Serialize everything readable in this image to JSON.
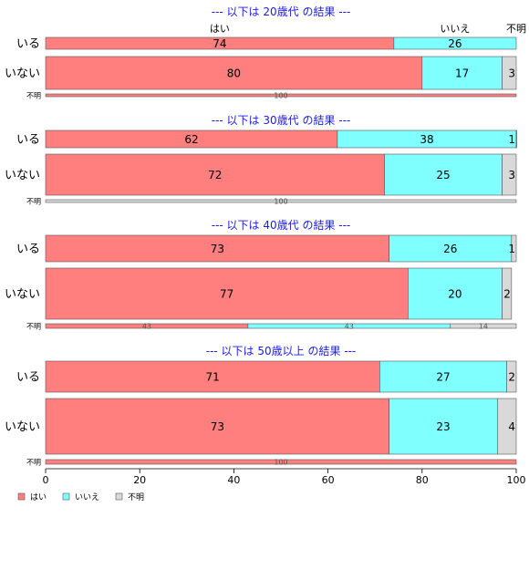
{
  "chart_data": {
    "type": "bar",
    "orientation": "horizontal",
    "stacked": true,
    "xlim": [
      0,
      100
    ],
    "x_ticks": [
      "0",
      "20",
      "40",
      "60",
      "80",
      "100"
    ],
    "grid": false,
    "legend_position": "bottom-left",
    "category_labels": [
      "はい",
      "いいえ",
      "不明"
    ],
    "colors": [
      "#ff7f7f",
      "#80ffff",
      "#d9d9d9"
    ],
    "legend": [
      {
        "name": "はい",
        "color": "#ff7f7f"
      },
      {
        "name": "いいえ",
        "color": "#80ffff"
      },
      {
        "name": "不明",
        "color": "#d9d9d9"
      }
    ],
    "panels": [
      {
        "title": "--- 以下は 20歳代 の結果 ---",
        "rows": [
          {
            "label": "いる",
            "values": [
              74,
              26,
              0
            ],
            "labels": [
              "74",
              "26",
              ""
            ]
          },
          {
            "label": "いない",
            "values": [
              80,
              17,
              3
            ],
            "labels": [
              "80",
              "17",
              "3"
            ]
          },
          {
            "label": "不明",
            "values": [
              100,
              0,
              0
            ],
            "labels": [
              "100",
              "",
              ""
            ]
          }
        ]
      },
      {
        "title": "--- 以下は 30歳代 の結果 ---",
        "rows": [
          {
            "label": "いる",
            "values": [
              62,
              38,
              1
            ],
            "labels": [
              "62",
              "38",
              "1"
            ]
          },
          {
            "label": "いない",
            "values": [
              72,
              25,
              3
            ],
            "labels": [
              "72",
              "25",
              "3"
            ]
          },
          {
            "label": "不明",
            "values": [
              0,
              0,
              100
            ],
            "labels": [
              "",
              "",
              "100"
            ]
          }
        ]
      },
      {
        "title": "--- 以下は 40歳代 の結果 ---",
        "rows": [
          {
            "label": "いる",
            "values": [
              73,
              26,
              1
            ],
            "labels": [
              "73",
              "26",
              "1"
            ]
          },
          {
            "label": "いない",
            "values": [
              77,
              20,
              2
            ],
            "labels": [
              "77",
              "20",
              "2"
            ]
          },
          {
            "label": "不明",
            "values": [
              43,
              43,
              14
            ],
            "labels": [
              "43",
              "43",
              "14"
            ]
          }
        ]
      },
      {
        "title": "--- 以下は 50歳以上 の結果 ---",
        "rows": [
          {
            "label": "いる",
            "values": [
              71,
              27,
              2
            ],
            "labels": [
              "71",
              "27",
              "2"
            ]
          },
          {
            "label": "いない",
            "values": [
              73,
              23,
              4
            ],
            "labels": [
              "73",
              "23",
              "4"
            ]
          },
          {
            "label": "不明",
            "values": [
              100,
              0,
              0
            ],
            "labels": [
              "100",
              "",
              ""
            ]
          }
        ]
      }
    ]
  }
}
